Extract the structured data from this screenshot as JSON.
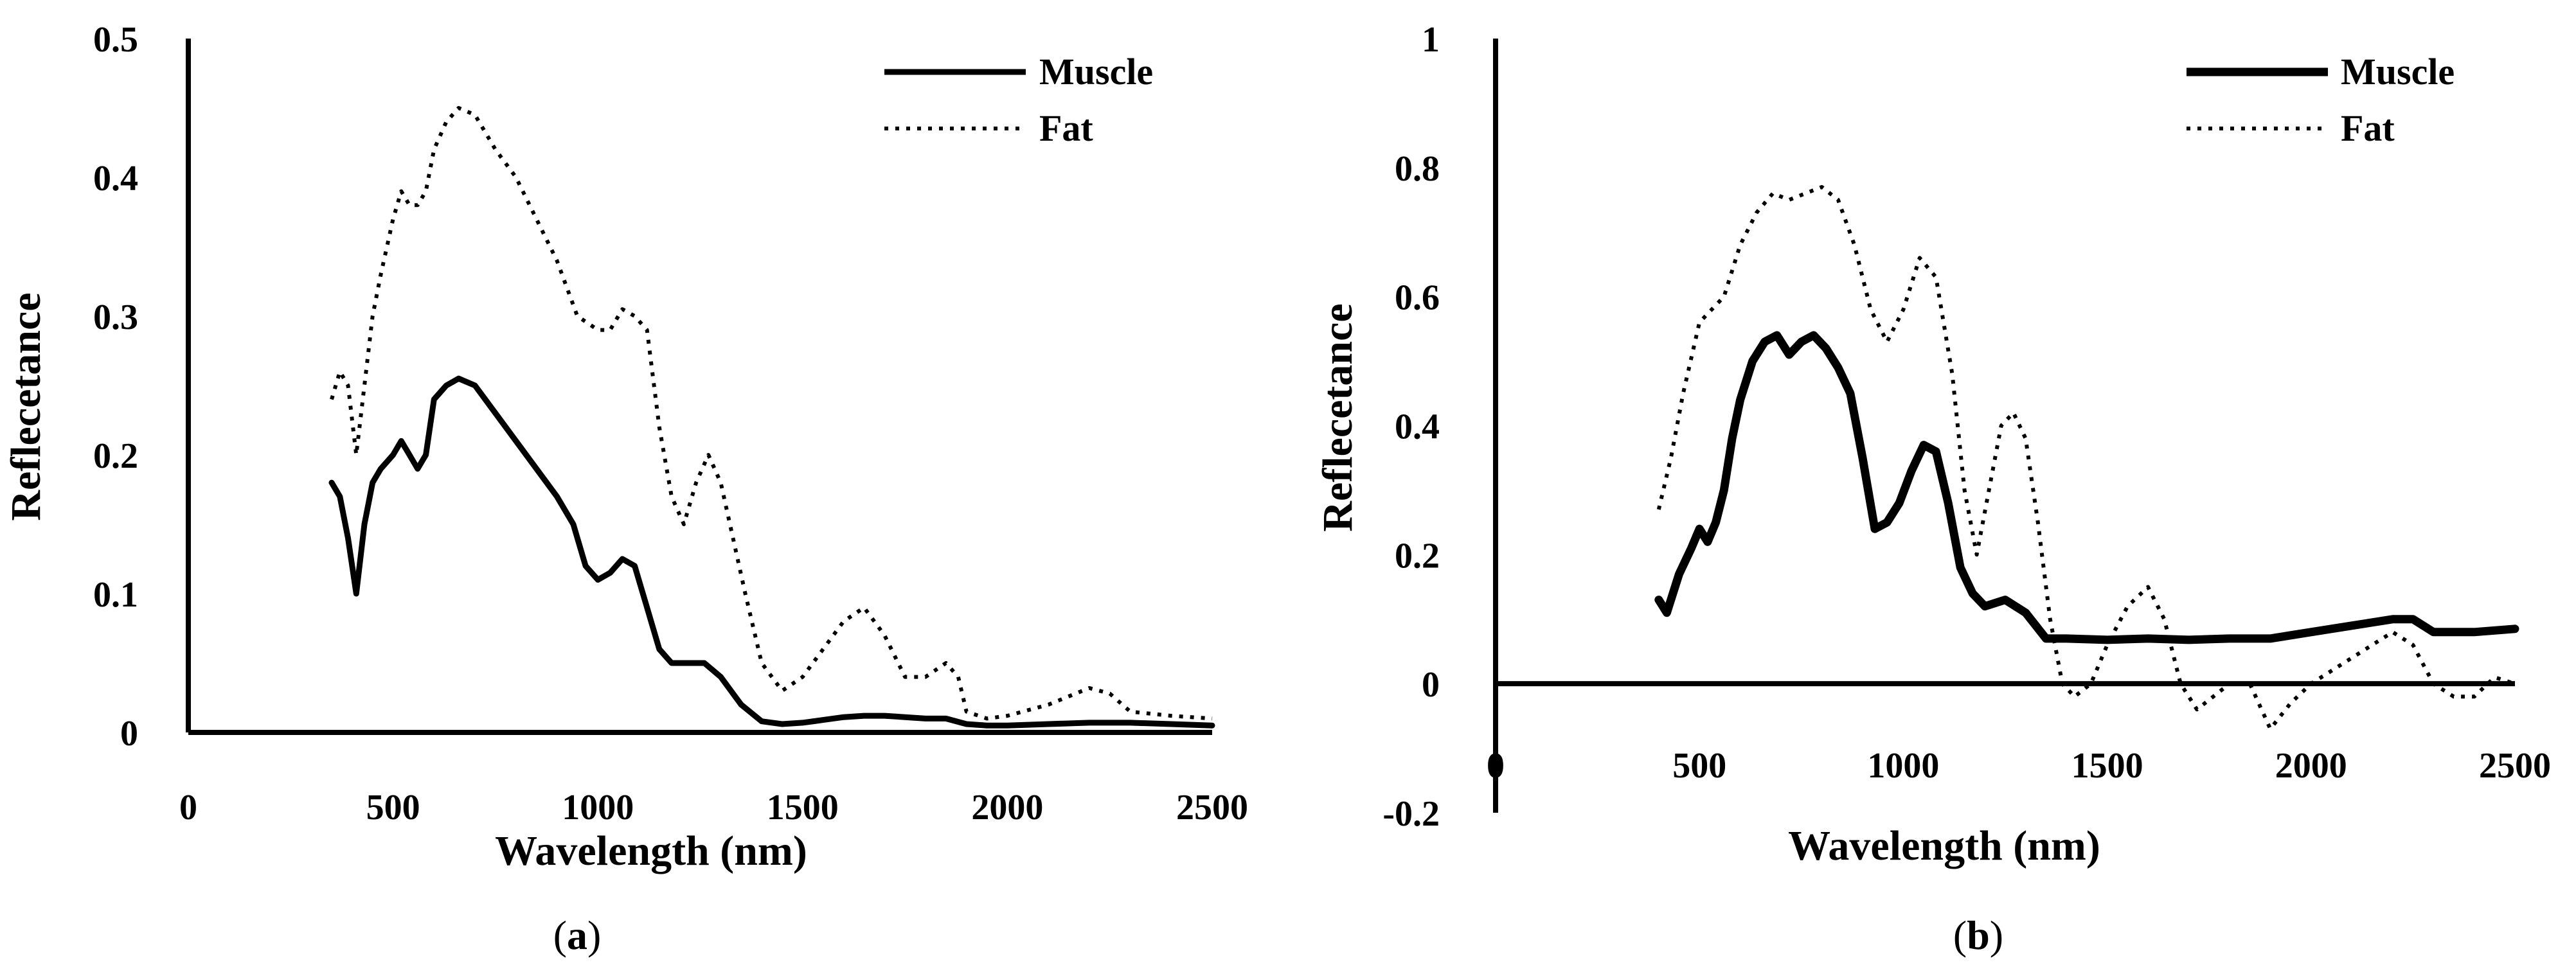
{
  "chart_data": [
    {
      "type": "line",
      "panel": "a",
      "caption_open": "(",
      "caption_letter": "a",
      "caption_close": ")",
      "xlabel": "Wavelength (nm)",
      "ylabel": "Reflecetance",
      "xlim": [
        0,
        2500
      ],
      "ylim": [
        0,
        0.5
      ],
      "xticks": [
        "0",
        "500",
        "1000",
        "1500",
        "2000",
        "2500"
      ],
      "yticks": [
        "0",
        "0.1",
        "0.2",
        "0.3",
        "0.4",
        "0.5"
      ],
      "legend_position": "top-right",
      "series": [
        {
          "name": "Muscle",
          "style": "solid",
          "x": [
            350,
            370,
            390,
            410,
            430,
            450,
            470,
            500,
            520,
            540,
            560,
            580,
            600,
            630,
            660,
            700,
            750,
            800,
            850,
            900,
            940,
            970,
            1000,
            1030,
            1060,
            1090,
            1120,
            1150,
            1180,
            1220,
            1260,
            1300,
            1350,
            1400,
            1450,
            1500,
            1550,
            1600,
            1650,
            1700,
            1750,
            1800,
            1850,
            1900,
            1950,
            2000,
            2100,
            2200,
            2300,
            2400,
            2500
          ],
          "y": [
            0.18,
            0.17,
            0.14,
            0.1,
            0.15,
            0.18,
            0.19,
            0.2,
            0.21,
            0.2,
            0.19,
            0.2,
            0.24,
            0.25,
            0.255,
            0.25,
            0.23,
            0.21,
            0.19,
            0.17,
            0.15,
            0.12,
            0.11,
            0.115,
            0.125,
            0.12,
            0.09,
            0.06,
            0.05,
            0.05,
            0.05,
            0.04,
            0.02,
            0.008,
            0.006,
            0.007,
            0.009,
            0.011,
            0.012,
            0.012,
            0.011,
            0.01,
            0.01,
            0.006,
            0.005,
            0.005,
            0.006,
            0.007,
            0.007,
            0.006,
            0.005
          ]
        },
        {
          "name": "Fat",
          "style": "dotted",
          "x": [
            350,
            370,
            390,
            410,
            430,
            450,
            470,
            500,
            520,
            540,
            560,
            580,
            600,
            630,
            660,
            700,
            750,
            800,
            850,
            900,
            950,
            1000,
            1030,
            1060,
            1090,
            1120,
            1150,
            1180,
            1210,
            1240,
            1270,
            1300,
            1330,
            1360,
            1400,
            1450,
            1500,
            1550,
            1600,
            1650,
            1700,
            1750,
            1800,
            1850,
            1880,
            1900,
            1950,
            2000,
            2100,
            2200,
            2250,
            2300,
            2400,
            2500
          ],
          "y": [
            0.24,
            0.26,
            0.25,
            0.2,
            0.25,
            0.3,
            0.33,
            0.37,
            0.39,
            0.38,
            0.38,
            0.39,
            0.42,
            0.44,
            0.45,
            0.445,
            0.42,
            0.4,
            0.37,
            0.34,
            0.3,
            0.29,
            0.29,
            0.305,
            0.3,
            0.29,
            0.22,
            0.17,
            0.15,
            0.18,
            0.2,
            0.18,
            0.14,
            0.1,
            0.05,
            0.03,
            0.04,
            0.06,
            0.08,
            0.09,
            0.07,
            0.04,
            0.04,
            0.05,
            0.04,
            0.015,
            0.01,
            0.012,
            0.02,
            0.032,
            0.028,
            0.015,
            0.012,
            0.01
          ]
        }
      ]
    },
    {
      "type": "line",
      "panel": "b",
      "caption_open": "(",
      "caption_letter": "b",
      "caption_close": ")",
      "xlabel": "Wavelength (nm)",
      "ylabel": "Reflecetance",
      "xlim": [
        0,
        2500
      ],
      "ylim": [
        -0.2,
        1
      ],
      "xticks": [
        "0",
        "500",
        "1000",
        "1500",
        "2000",
        "2500"
      ],
      "yticks": [
        "-0.2",
        "0",
        "0.2",
        "0.4",
        "0.6",
        "0.8",
        "1"
      ],
      "legend_position": "top-right",
      "series": [
        {
          "name": "Muscle",
          "style": "solid",
          "x": [
            400,
            420,
            450,
            480,
            500,
            520,
            540,
            560,
            580,
            600,
            630,
            660,
            690,
            720,
            750,
            780,
            810,
            840,
            870,
            900,
            930,
            960,
            990,
            1020,
            1050,
            1080,
            1110,
            1140,
            1170,
            1200,
            1250,
            1300,
            1350,
            1400,
            1500,
            1600,
            1700,
            1800,
            1900,
            2000,
            2100,
            2200,
            2250,
            2300,
            2400,
            2500
          ],
          "y": [
            0.13,
            0.11,
            0.17,
            0.21,
            0.24,
            0.22,
            0.25,
            0.3,
            0.38,
            0.44,
            0.5,
            0.53,
            0.54,
            0.51,
            0.53,
            0.54,
            0.52,
            0.49,
            0.45,
            0.35,
            0.24,
            0.25,
            0.28,
            0.33,
            0.37,
            0.36,
            0.28,
            0.18,
            0.14,
            0.12,
            0.13,
            0.11,
            0.07,
            0.07,
            0.068,
            0.07,
            0.068,
            0.07,
            0.07,
            0.08,
            0.09,
            0.1,
            0.1,
            0.08,
            0.08,
            0.085
          ]
        },
        {
          "name": "Fat",
          "style": "dotted",
          "x": [
            400,
            430,
            460,
            500,
            530,
            560,
            600,
            640,
            680,
            720,
            760,
            800,
            840,
            880,
            920,
            960,
            1000,
            1040,
            1080,
            1120,
            1150,
            1180,
            1210,
            1240,
            1270,
            1300,
            1330,
            1360,
            1390,
            1420,
            1460,
            1500,
            1550,
            1600,
            1640,
            1680,
            1720,
            1760,
            1800,
            1850,
            1900,
            1950,
            2000,
            2100,
            2200,
            2250,
            2300,
            2350,
            2400,
            2450,
            2500
          ],
          "y": [
            0.27,
            0.35,
            0.45,
            0.56,
            0.58,
            0.6,
            0.68,
            0.73,
            0.76,
            0.75,
            0.76,
            0.77,
            0.75,
            0.68,
            0.58,
            0.53,
            0.58,
            0.66,
            0.63,
            0.48,
            0.3,
            0.2,
            0.3,
            0.4,
            0.42,
            0.38,
            0.25,
            0.1,
            0.0,
            -0.02,
            0.0,
            0.06,
            0.12,
            0.15,
            0.1,
            0.0,
            -0.04,
            -0.02,
            0.0,
            0.0,
            -0.07,
            -0.03,
            0.0,
            0.04,
            0.08,
            0.06,
            0.0,
            -0.02,
            -0.02,
            0.01,
            0.0
          ]
        }
      ]
    }
  ]
}
